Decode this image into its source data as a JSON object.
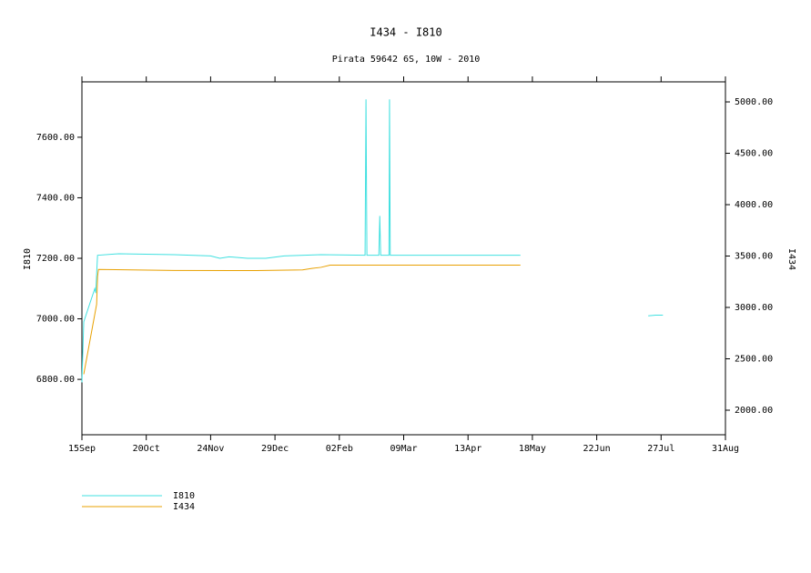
{
  "chart_data": {
    "type": "line",
    "title": "I434 - I810",
    "subtitle": "Pirata 59642 6S, 10W - 2010",
    "y_label": "I810",
    "y2_label": "I434",
    "xlim": [
      0,
      350
    ],
    "xticks": [
      {
        "value": 0,
        "label": "15Sep"
      },
      {
        "value": 35,
        "label": "20Oct"
      },
      {
        "value": 70,
        "label": "24Nov"
      },
      {
        "value": 105,
        "label": "29Dec"
      },
      {
        "value": 140,
        "label": "02Feb"
      },
      {
        "value": 175,
        "label": "09Mar"
      },
      {
        "value": 210,
        "label": "13Apr"
      },
      {
        "value": 245,
        "label": "18May"
      },
      {
        "value": 280,
        "label": "22Jun"
      },
      {
        "value": 315,
        "label": "27Jul"
      },
      {
        "value": 350,
        "label": "31Aug"
      }
    ],
    "ylim": [
      6617,
      7783
    ],
    "yticks": [
      {
        "value": 6800,
        "label": "6800.00"
      },
      {
        "value": 7000,
        "label": "7000.00"
      },
      {
        "value": 7200,
        "label": "7200.00"
      },
      {
        "value": 7400,
        "label": "7400.00"
      },
      {
        "value": 7600,
        "label": "7600.00"
      }
    ],
    "y2lim": [
      1761,
      5195
    ],
    "y2ticks": [
      {
        "value": 2000,
        "label": "2000.00"
      },
      {
        "value": 2500,
        "label": "2500.00"
      },
      {
        "value": 3000,
        "label": "3000.00"
      },
      {
        "value": 3500,
        "label": "3500.00"
      },
      {
        "value": 4000,
        "label": "4000.00"
      },
      {
        "value": 4500,
        "label": "4500.00"
      },
      {
        "value": 5000,
        "label": "5000.00"
      }
    ],
    "series": [
      {
        "name": "I810",
        "color": "#40e0e0",
        "x": [
          0,
          1,
          7,
          7.5,
          8.5,
          20,
          50,
          70,
          75,
          80,
          90,
          100,
          110,
          130,
          154,
          154.5,
          155,
          161.5,
          162,
          162.5,
          167,
          167.3,
          167.7,
          200,
          238.5,
          239,
          308,
          312,
          316
        ],
        "values": [
          6790,
          6990,
          7100,
          7085,
          7210,
          7215,
          7212,
          7208,
          7200,
          7205,
          7200,
          7200,
          7208,
          7212,
          7210,
          7725,
          7210,
          7210,
          7340,
          7210,
          7210,
          7725,
          7210,
          7210,
          7210,
          null,
          7010,
          7012,
          7012
        ]
      },
      {
        "name": "I434",
        "color": "#e8a000",
        "axis": "y2",
        "x": [
          1,
          8,
          8.5,
          9,
          50,
          95,
          120,
          125,
          130,
          135,
          238.5
        ],
        "values": [
          2350,
          3030,
          3300,
          3370,
          3360,
          3358,
          3365,
          3380,
          3390,
          3412,
          3412
        ]
      }
    ]
  }
}
